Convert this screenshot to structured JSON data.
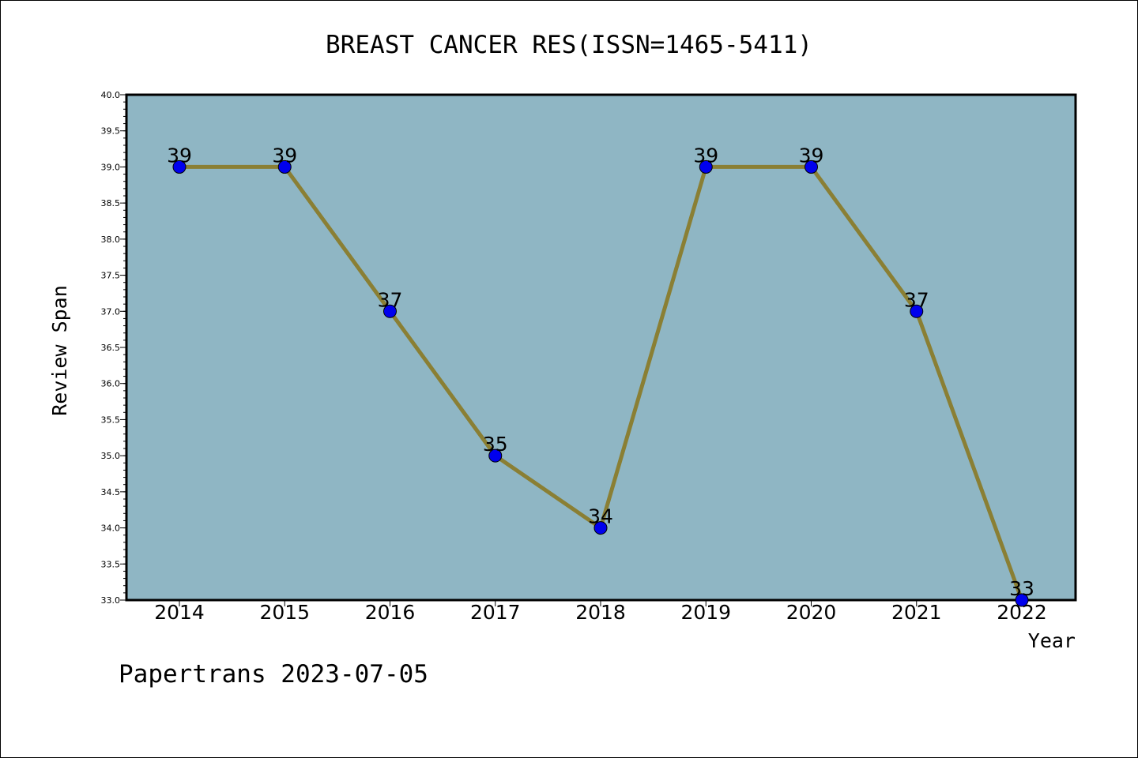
{
  "chart_data": {
    "type": "line",
    "title": "BREAST CANCER RES(ISSN=1465-5411)",
    "xlabel": "Year",
    "ylabel": "Review Span",
    "categories": [
      "2014",
      "2015",
      "2016",
      "2017",
      "2018",
      "2019",
      "2020",
      "2021",
      "2022"
    ],
    "series": [
      {
        "values": [
          39,
          39,
          37,
          35,
          34,
          39,
          39,
          37,
          33
        ],
        "data_labels": [
          "39",
          "39",
          "37",
          "35",
          "34",
          "39",
          "39",
          "37",
          "33"
        ]
      }
    ],
    "ylim": [
      33.0,
      40.0
    ],
    "yticks": [
      "33.0",
      "33.5",
      "34.0",
      "34.5",
      "35.0",
      "35.5",
      "36.0",
      "36.5",
      "37.0",
      "37.5",
      "38.0",
      "38.5",
      "39.0",
      "39.5",
      "40.0"
    ],
    "grid": false,
    "colors": {
      "plot_background": "#8fb6c4",
      "line": "#8a7f34",
      "marker": "#0000ee"
    }
  },
  "footer": "Papertrans 2023-07-05"
}
